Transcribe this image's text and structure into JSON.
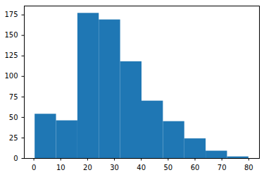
{
  "chart_data": {
    "type": "histogram",
    "bins": [
      0.42,
      8.38,
      16.34,
      24.29,
      32.25,
      40.21,
      48.17,
      56.13,
      64.08,
      72.04,
      80.0
    ],
    "values": [
      54,
      46,
      177,
      169,
      118,
      70,
      45,
      24,
      9,
      2
    ],
    "color": "#1f77b4",
    "xlim": [
      -3.56,
      83.98
    ],
    "xticks": [
      0,
      10,
      20,
      30,
      40,
      50,
      60,
      70,
      80
    ],
    "ylim": [
      0,
      185.85
    ],
    "yticks": [
      0,
      25,
      50,
      75,
      100,
      125,
      150,
      175
    ],
    "grid": false
  }
}
